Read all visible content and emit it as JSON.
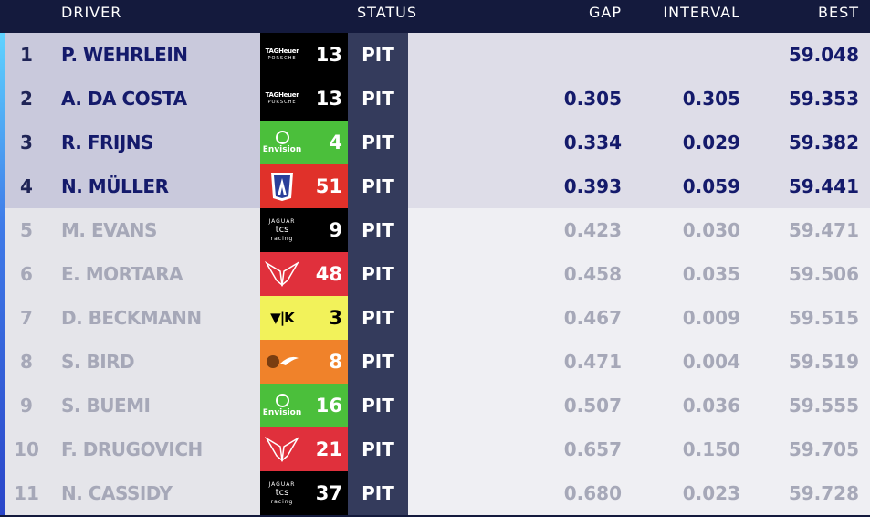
{
  "headers": {
    "driver": "DRIVER",
    "status": "STATUS",
    "gap": "GAP",
    "interval": "INTERVAL",
    "best": "BEST"
  },
  "rows": [
    {
      "pos": "1",
      "driver": "P. WEHRLEIN",
      "team": "porsche",
      "car": "13",
      "status": "PIT",
      "gap": "",
      "interval": "",
      "best": "59.048"
    },
    {
      "pos": "2",
      "driver": "A. DA COSTA",
      "team": "porsche",
      "car": "13",
      "status": "PIT",
      "gap": "0.305",
      "interval": "0.305",
      "best": "59.353"
    },
    {
      "pos": "3",
      "driver": "R. FRIJNS",
      "team": "envision",
      "car": "4",
      "status": "PIT",
      "gap": "0.334",
      "interval": "0.029",
      "best": "59.382"
    },
    {
      "pos": "4",
      "driver": "N. MÜLLER",
      "team": "andretti",
      "car": "51",
      "status": "PIT",
      "gap": "0.393",
      "interval": "0.059",
      "best": "59.441"
    },
    {
      "pos": "5",
      "driver": "M. EVANS",
      "team": "jaguar",
      "car": "9",
      "status": "PIT",
      "gap": "0.423",
      "interval": "0.030",
      "best": "59.471"
    },
    {
      "pos": "6",
      "driver": "E. MORTARA",
      "team": "mahindra",
      "car": "48",
      "status": "PIT",
      "gap": "0.458",
      "interval": "0.035",
      "best": "59.506"
    },
    {
      "pos": "7",
      "driver": "D. BECKMANN",
      "team": "cupra",
      "car": "3",
      "status": "PIT",
      "gap": "0.467",
      "interval": "0.009",
      "best": "59.515"
    },
    {
      "pos": "8",
      "driver": "S. BIRD",
      "team": "mclaren",
      "car": "8",
      "status": "PIT",
      "gap": "0.471",
      "interval": "0.004",
      "best": "59.519"
    },
    {
      "pos": "9",
      "driver": "S. BUEMI",
      "team": "envision",
      "car": "16",
      "status": "PIT",
      "gap": "0.507",
      "interval": "0.036",
      "best": "59.555"
    },
    {
      "pos": "10",
      "driver": "F. DRUGOVICH",
      "team": "mahindra",
      "car": "21",
      "status": "PIT",
      "gap": "0.657",
      "interval": "0.150",
      "best": "59.705"
    },
    {
      "pos": "11",
      "driver": "N. CASSIDY",
      "team": "jaguar",
      "car": "37",
      "status": "PIT",
      "gap": "0.680",
      "interval": "0.023",
      "best": "59.728"
    }
  ],
  "team_styles": {
    "porsche": {
      "bg": "#000000",
      "fg": "#ffffff",
      "logo_line1": "TAGHeuer",
      "logo_line2": "PORSCHE"
    },
    "envision": {
      "bg": "#4bbf3b",
      "fg": "#ffffff",
      "logo_text": "Envision"
    },
    "andretti": {
      "bg": "#e0312a",
      "fg": "#ffffff"
    },
    "jaguar": {
      "bg": "#000000",
      "fg": "#ffffff",
      "logo_line1": "JAGUAR",
      "logo_line2": "tcs",
      "logo_line3": "racing"
    },
    "mahindra": {
      "bg": "#e0303c",
      "fg": "#ffffff"
    },
    "cupra": {
      "bg": "#f2f25a",
      "fg": "#000000",
      "logo_text": "▼|K"
    },
    "mclaren": {
      "bg": "#f0822a",
      "fg": "#ffffff"
    }
  }
}
